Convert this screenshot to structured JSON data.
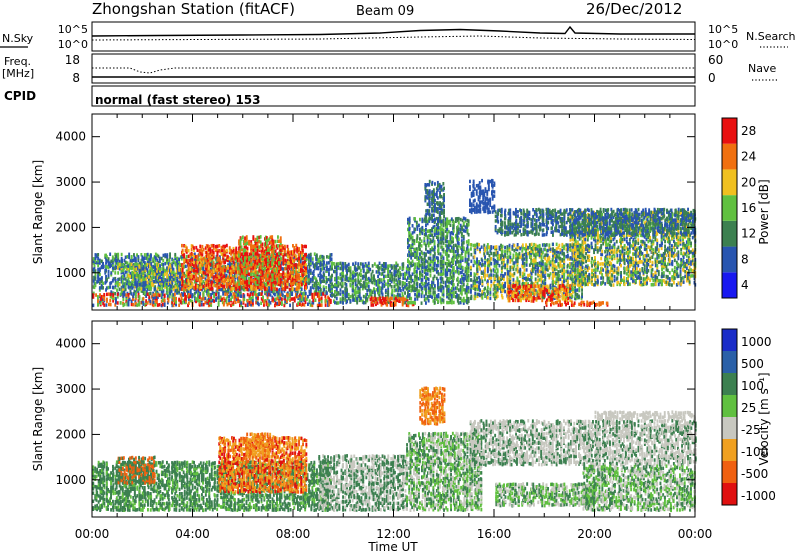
{
  "header": {
    "station": "Zhongshan Station (fitACF)",
    "beam": "Beam 09",
    "date": "26/Dec/2012"
  },
  "panels": {
    "nsky": {
      "label": "N.Sky",
      "right_label": "N.Search",
      "ticks_left": [
        "10^5",
        "10^0"
      ],
      "ticks_right": [
        "10^5",
        "10^0"
      ]
    },
    "freq": {
      "label_line1": "Freq.",
      "label_line2": "[MHz]",
      "right_label": "Nave",
      "ticks_left": [
        "18",
        "8"
      ],
      "ticks_right": [
        "60",
        "0"
      ]
    },
    "cpid": {
      "label": "CPID",
      "text": "normal (fast stereo) 153"
    }
  },
  "chart_data": [
    {
      "type": "heatmap",
      "ylabel": "Slant Range [km]",
      "yticks": [
        "1000",
        "2000",
        "3000",
        "4000"
      ],
      "ylim": [
        180,
        4500
      ],
      "colorbar_label": "Power [dB]",
      "colorbar_ticks": [
        "4",
        "8",
        "12",
        "16",
        "20",
        "24",
        "28"
      ],
      "colors": [
        "#1818f0",
        "#2855b0",
        "#3c8050",
        "#60c040",
        "#f0c020",
        "#f07010",
        "#e81010"
      ],
      "background_color": "#ffffff"
    },
    {
      "type": "heatmap",
      "ylabel": "Slant Range [km]",
      "yticks": [
        "1000",
        "2000",
        "3000",
        "4000"
      ],
      "ylim": [
        180,
        4500
      ],
      "colorbar_label": "Velocity [m s⁻¹]",
      "colorbar_ticks": [
        "1000",
        "500",
        "100",
        "25",
        "-25",
        "-100",
        "-500",
        "-1000"
      ],
      "colors": [
        "#1a2cc8",
        "#2a60a8",
        "#3c8050",
        "#60c040",
        "#c8c8c0",
        "#f0a020",
        "#f06010",
        "#e01010"
      ],
      "background_color": "#ffffff"
    }
  ],
  "xaxis": {
    "ticks": [
      "00:00",
      "04:00",
      "08:00",
      "12:00",
      "16:00",
      "20:00",
      "00:00"
    ],
    "label": "Time UT",
    "range_hours": [
      0,
      24
    ]
  }
}
